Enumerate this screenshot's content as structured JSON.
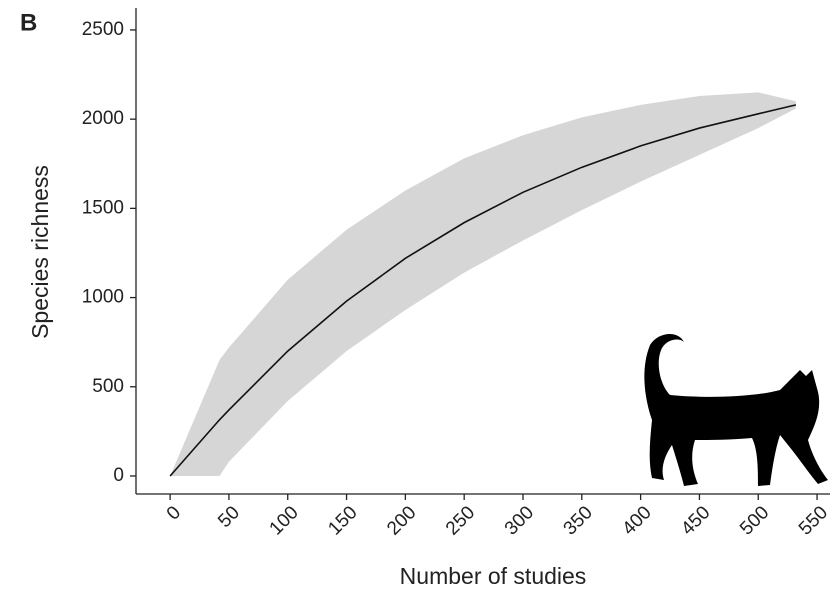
{
  "chart_data": {
    "type": "line",
    "panel_label": "B",
    "x_label": "Number of studies",
    "y_label": "Species richness",
    "x": [
      0,
      42,
      50,
      100,
      150,
      200,
      250,
      300,
      350,
      400,
      450,
      500,
      532
    ],
    "values": [
      0,
      315,
      370,
      700,
      980,
      1220,
      1420,
      1590,
      1730,
      1850,
      1950,
      2030,
      2080
    ],
    "upper": [
      0,
      650,
      720,
      1100,
      1380,
      1600,
      1780,
      1910,
      2010,
      2080,
      2130,
      2150,
      2100
    ],
    "lower": [
      0,
      0,
      80,
      420,
      700,
      930,
      1140,
      1320,
      1490,
      1650,
      1800,
      1950,
      2060
    ],
    "color": "#111111",
    "band_color": "#d6d6d6",
    "xlim": [
      -29,
      561
    ],
    "ylim": [
      -101,
      2623
    ],
    "xticks": [
      0,
      50,
      100,
      150,
      200,
      250,
      300,
      350,
      400,
      450,
      500,
      550
    ],
    "yticks": [
      0,
      500,
      1000,
      1500,
      2000,
      2500
    ]
  }
}
